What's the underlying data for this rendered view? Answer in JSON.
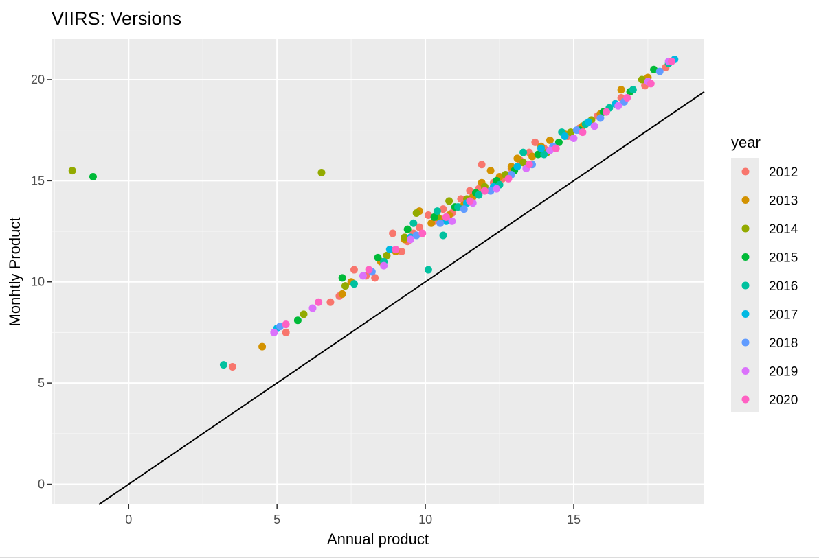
{
  "chart_data": {
    "type": "scatter",
    "title": "VIIRS: Versions",
    "xlabel": "Annual product",
    "ylabel": "Monhtly Product",
    "xlim": [
      -2.6,
      19.4
    ],
    "ylim": [
      -1,
      22
    ],
    "x_ticks": [
      0,
      5,
      10,
      15
    ],
    "y_ticks": [
      0,
      5,
      10,
      15,
      20
    ],
    "grid": true,
    "panel_background": "#ebebeb",
    "reference_line": {
      "slope": 1,
      "intercept": 0,
      "color": "#000000"
    },
    "legend": {
      "title": "year",
      "position": "right",
      "entries": [
        {
          "label": "2012",
          "color": "#F8766D"
        },
        {
          "label": "2013",
          "color": "#D39200"
        },
        {
          "label": "2014",
          "color": "#93AA00"
        },
        {
          "label": "2015",
          "color": "#00BA38"
        },
        {
          "label": "2016",
          "color": "#00C19F"
        },
        {
          "label": "2017",
          "color": "#00B9E3"
        },
        {
          "label": "2018",
          "color": "#619CFF"
        },
        {
          "label": "2019",
          "color": "#DB72FB"
        },
        {
          "label": "2020",
          "color": "#FF61C3"
        }
      ]
    },
    "series": [
      {
        "name": "2012",
        "points": [
          [
            3.5,
            5.8
          ],
          [
            5.3,
            7.5
          ],
          [
            6.8,
            9.0
          ],
          [
            7.1,
            9.3
          ],
          [
            7.6,
            10.6
          ],
          [
            8.0,
            10.3
          ],
          [
            8.3,
            10.2
          ],
          [
            8.9,
            12.4
          ],
          [
            9.2,
            11.5
          ],
          [
            9.4,
            12.0
          ],
          [
            9.6,
            12.4
          ],
          [
            9.8,
            12.7
          ],
          [
            10.1,
            13.3
          ],
          [
            10.3,
            13.0
          ],
          [
            10.6,
            13.6
          ],
          [
            10.9,
            13.4
          ],
          [
            11.2,
            14.1
          ],
          [
            11.5,
            14.5
          ],
          [
            11.8,
            14.6
          ],
          [
            11.9,
            15.8
          ],
          [
            12.3,
            14.9
          ],
          [
            12.6,
            15.1
          ],
          [
            12.9,
            15.6
          ],
          [
            13.2,
            16.0
          ],
          [
            13.5,
            16.4
          ],
          [
            13.7,
            16.9
          ],
          [
            14.0,
            16.6
          ],
          [
            14.4,
            16.6
          ],
          [
            14.8,
            17.2
          ],
          [
            15.2,
            17.6
          ],
          [
            15.8,
            18.2
          ],
          [
            16.6,
            19.1
          ],
          [
            17.4,
            19.7
          ],
          [
            18.1,
            20.6
          ]
        ]
      },
      {
        "name": "2013",
        "points": [
          [
            4.5,
            6.8
          ],
          [
            7.2,
            9.4
          ],
          [
            7.5,
            10.0
          ],
          [
            8.5,
            11.0
          ],
          [
            9.0,
            11.5
          ],
          [
            9.3,
            12.1
          ],
          [
            9.8,
            13.5
          ],
          [
            10.2,
            12.9
          ],
          [
            10.5,
            13.1
          ],
          [
            10.8,
            13.3
          ],
          [
            11.3,
            13.8
          ],
          [
            11.6,
            14.2
          ],
          [
            11.9,
            14.9
          ],
          [
            12.2,
            15.5
          ],
          [
            12.5,
            15.2
          ],
          [
            12.9,
            15.7
          ],
          [
            13.1,
            16.1
          ],
          [
            13.6,
            16.2
          ],
          [
            13.9,
            16.7
          ],
          [
            14.2,
            17.0
          ],
          [
            14.7,
            17.3
          ],
          [
            15.3,
            17.7
          ],
          [
            15.9,
            18.3
          ],
          [
            16.6,
            19.5
          ],
          [
            17.5,
            20.1
          ]
        ]
      },
      {
        "name": "2014",
        "points": [
          [
            -1.9,
            15.5
          ],
          [
            6.5,
            15.4
          ],
          [
            5.9,
            8.4
          ],
          [
            7.3,
            9.8
          ],
          [
            8.7,
            11.3
          ],
          [
            9.3,
            12.2
          ],
          [
            9.7,
            13.4
          ],
          [
            10.4,
            13.2
          ],
          [
            10.8,
            14.0
          ],
          [
            11.4,
            14.1
          ],
          [
            12.0,
            14.7
          ],
          [
            12.7,
            15.3
          ],
          [
            13.3,
            15.9
          ],
          [
            14.1,
            16.4
          ],
          [
            14.9,
            17.4
          ],
          [
            15.6,
            18.0
          ],
          [
            16.4,
            18.8
          ],
          [
            17.3,
            20.0
          ]
        ]
      },
      {
        "name": "2015",
        "points": [
          [
            -1.2,
            15.2
          ],
          [
            5.7,
            8.1
          ],
          [
            7.2,
            10.2
          ],
          [
            8.4,
            11.2
          ],
          [
            9.4,
            12.6
          ],
          [
            10.3,
            13.2
          ],
          [
            11.0,
            13.7
          ],
          [
            11.7,
            14.4
          ],
          [
            12.4,
            15.0
          ],
          [
            13.0,
            15.5
          ],
          [
            13.8,
            16.3
          ],
          [
            14.5,
            16.9
          ],
          [
            15.2,
            17.5
          ],
          [
            16.0,
            18.4
          ],
          [
            16.9,
            19.4
          ],
          [
            17.7,
            20.5
          ]
        ]
      },
      {
        "name": "2016",
        "points": [
          [
            3.2,
            5.9
          ],
          [
            7.6,
            9.9
          ],
          [
            8.6,
            11.0
          ],
          [
            9.6,
            12.9
          ],
          [
            10.1,
            10.6
          ],
          [
            10.4,
            13.5
          ],
          [
            10.6,
            12.3
          ],
          [
            11.1,
            13.7
          ],
          [
            11.8,
            14.3
          ],
          [
            12.5,
            14.8
          ],
          [
            13.3,
            16.4
          ],
          [
            14.0,
            16.3
          ],
          [
            14.6,
            17.4
          ],
          [
            15.4,
            17.8
          ],
          [
            16.2,
            18.6
          ],
          [
            17.0,
            19.5
          ],
          [
            18.2,
            20.8
          ]
        ]
      },
      {
        "name": "2017",
        "points": [
          [
            5.0,
            7.7
          ],
          [
            8.8,
            11.6
          ],
          [
            9.5,
            12.2
          ],
          [
            10.7,
            13.0
          ],
          [
            11.4,
            13.9
          ],
          [
            12.3,
            14.7
          ],
          [
            13.1,
            15.7
          ],
          [
            13.9,
            16.6
          ],
          [
            14.7,
            17.2
          ],
          [
            15.5,
            17.9
          ],
          [
            16.4,
            18.8
          ],
          [
            18.4,
            21.0
          ]
        ]
      },
      {
        "name": "2018",
        "points": [
          [
            5.1,
            7.8
          ],
          [
            8.2,
            10.5
          ],
          [
            9.7,
            12.3
          ],
          [
            10.5,
            12.9
          ],
          [
            11.3,
            13.6
          ],
          [
            12.2,
            14.5
          ],
          [
            12.9,
            15.3
          ],
          [
            13.6,
            15.8
          ],
          [
            14.3,
            16.7
          ],
          [
            15.1,
            17.5
          ],
          [
            15.9,
            18.1
          ],
          [
            16.7,
            18.9
          ],
          [
            17.9,
            20.4
          ]
        ]
      },
      {
        "name": "2019",
        "points": [
          [
            4.9,
            7.5
          ],
          [
            6.2,
            8.7
          ],
          [
            7.9,
            10.3
          ],
          [
            8.6,
            10.8
          ],
          [
            9.5,
            12.1
          ],
          [
            10.9,
            13.0
          ],
          [
            11.6,
            13.9
          ],
          [
            12.4,
            14.6
          ],
          [
            13.4,
            15.6
          ],
          [
            14.2,
            16.5
          ],
          [
            15.0,
            17.1
          ],
          [
            15.7,
            17.7
          ],
          [
            16.5,
            18.7
          ],
          [
            17.5,
            19.9
          ],
          [
            18.2,
            20.9
          ]
        ]
      },
      {
        "name": "2020",
        "points": [
          [
            5.3,
            7.9
          ],
          [
            6.4,
            9.0
          ],
          [
            8.1,
            10.6
          ],
          [
            9.0,
            11.6
          ],
          [
            9.9,
            12.4
          ],
          [
            10.7,
            13.2
          ],
          [
            11.5,
            14.0
          ],
          [
            12.0,
            14.5
          ],
          [
            12.8,
            15.1
          ],
          [
            13.5,
            15.8
          ],
          [
            14.4,
            16.6
          ],
          [
            15.3,
            17.4
          ],
          [
            16.1,
            18.4
          ],
          [
            16.8,
            19.1
          ],
          [
            17.6,
            19.8
          ],
          [
            18.3,
            20.9
          ]
        ]
      }
    ]
  }
}
